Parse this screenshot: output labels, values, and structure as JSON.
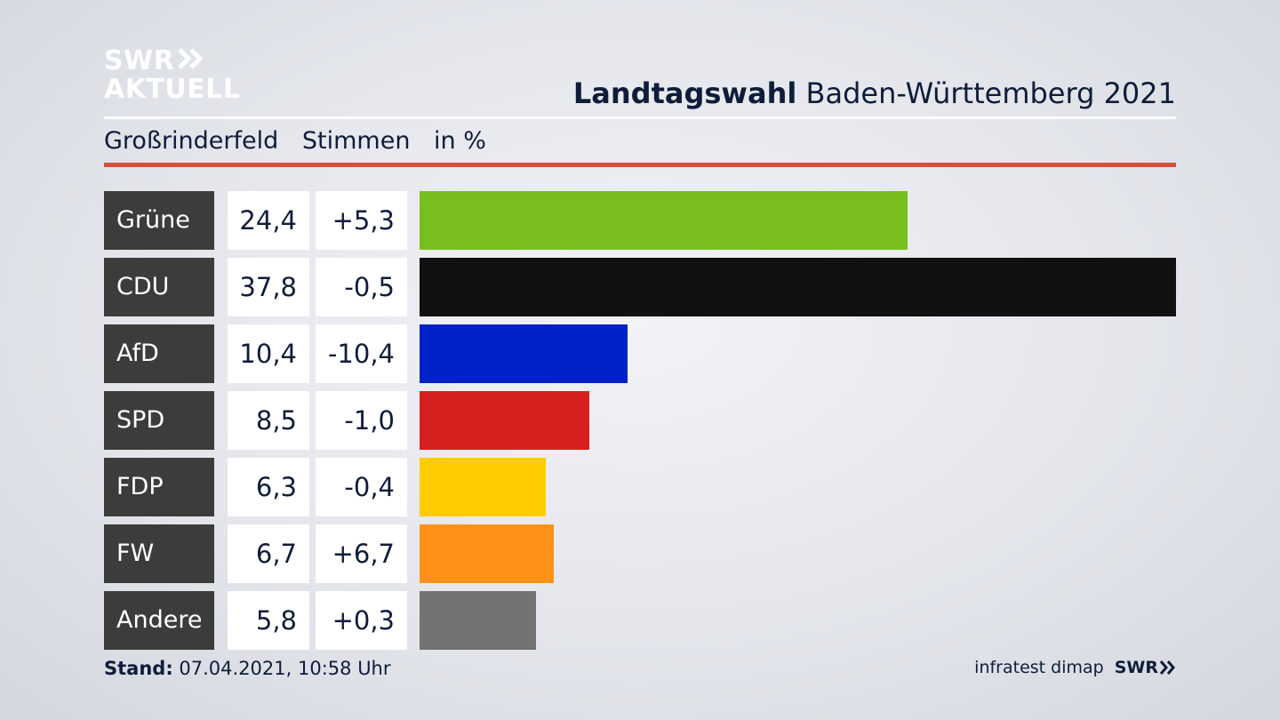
{
  "logo": {
    "line1": "SWR",
    "line2": "AKTUELL"
  },
  "header": {
    "title_bold": "Landtagswahl",
    "title_rest": "Baden-Württemberg 2021"
  },
  "subheader": {
    "location": "Großrinderfeld",
    "measure": "Stimmen",
    "unit": "in %"
  },
  "colors": {
    "accent_rule": "#d2523b",
    "party_cell": "#3c3c3b"
  },
  "chart_data": {
    "type": "bar",
    "orientation": "horizontal",
    "xlim": [
      0,
      37.8
    ],
    "categories": [
      "Grüne",
      "CDU",
      "AfD",
      "SPD",
      "FDP",
      "FW",
      "Andere"
    ],
    "values": [
      24.4,
      37.8,
      10.4,
      8.5,
      6.3,
      6.7,
      5.8
    ],
    "value_labels": [
      "24,4",
      "37,8",
      "10,4",
      "8,5",
      "6,3",
      "6,7",
      "5,8"
    ],
    "diff_labels": [
      "+5,3",
      "-0,5",
      "-10,4",
      "-1,0",
      "-0,4",
      "+6,7",
      "+0,3"
    ],
    "bar_colors": [
      "#78be1e",
      "#111111",
      "#0021c9",
      "#d6201f",
      "#ffcc00",
      "#ff9118",
      "#737374"
    ]
  },
  "footer": {
    "stand_label": "Stand:",
    "stand_value": "07.04.2021, 10:58 Uhr",
    "source": "infratest dimap",
    "brand": "SWR"
  }
}
